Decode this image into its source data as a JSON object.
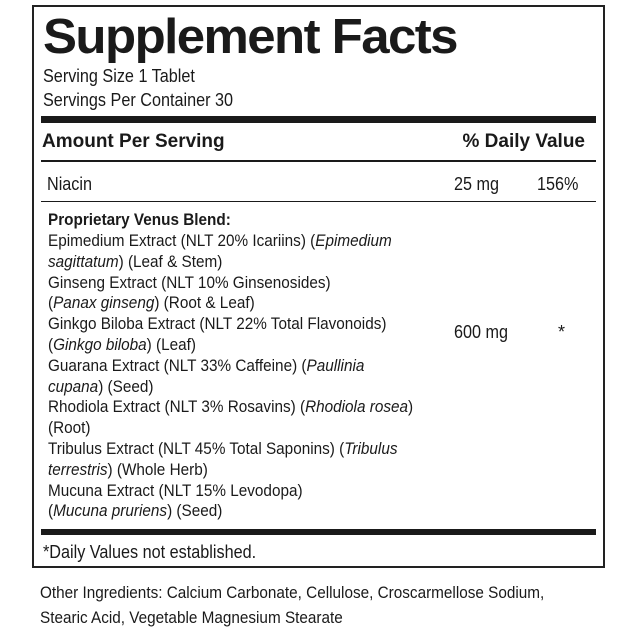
{
  "title": "Supplement Facts",
  "serving_size": "Serving Size 1 Tablet",
  "servings_per_container": "Servings Per Container 30",
  "header": {
    "amount": "Amount Per Serving",
    "daily_value": "% Daily Value"
  },
  "niacin": {
    "name": "Niacin",
    "amount": "25 mg",
    "dv": "156%"
  },
  "blend": {
    "title": "Proprietary Venus Blend:",
    "amount": "600 mg",
    "dv": "*",
    "lines": [
      [
        {
          "t": "Epimedium Extract (NLT 20% Icariins) ("
        },
        {
          "t": "Epimedium",
          "i": true
        }
      ],
      [
        {
          "t": "sagittatum",
          "i": true
        },
        {
          "t": ") (Leaf & Stem)"
        }
      ],
      [
        {
          "t": "Ginseng Extract (NLT 10% Ginsenosides)"
        }
      ],
      [
        {
          "t": " ("
        },
        {
          "t": "Panax ginseng",
          "i": true
        },
        {
          "t": ") (Root & Leaf)"
        }
      ],
      [
        {
          "t": "Ginkgo Biloba Extract (NLT 22% Total Flavonoids)"
        }
      ],
      [
        {
          "t": " ("
        },
        {
          "t": "Ginkgo biloba",
          "i": true
        },
        {
          "t": ") (Leaf)"
        }
      ],
      [
        {
          "t": "Guarana Extract (NLT 33% Caffeine) ("
        },
        {
          "t": "Paullinia",
          "i": true
        }
      ],
      [
        {
          "t": "cupana",
          "i": true
        },
        {
          "t": ") (Seed)"
        }
      ],
      [
        {
          "t": "Rhodiola Extract (NLT 3% Rosavins) ("
        },
        {
          "t": "Rhodiola rosea",
          "i": true
        },
        {
          "t": ")"
        }
      ],
      [
        {
          "t": " (Root)"
        }
      ],
      [
        {
          "t": "Tribulus Extract (NLT 45% Total Saponins) ("
        },
        {
          "t": "Tribulus",
          "i": true
        }
      ],
      [
        {
          "t": "terrestris",
          "i": true
        },
        {
          "t": ") (Whole Herb)"
        }
      ],
      [
        {
          "t": "Mucuna Extract (NLT 15% Levodopa)"
        }
      ],
      [
        {
          "t": "("
        },
        {
          "t": "Mucuna pruriens",
          "i": true
        },
        {
          "t": ") (Seed)"
        }
      ]
    ]
  },
  "footnote": "*Daily Values not established.",
  "other_ingredients": {
    "line1": "Other Ingredients: Calcium Carbonate, Cellulose, Croscarmellose Sodium,",
    "line2": "Stearic Acid, Vegetable Magnesium Stearate"
  }
}
